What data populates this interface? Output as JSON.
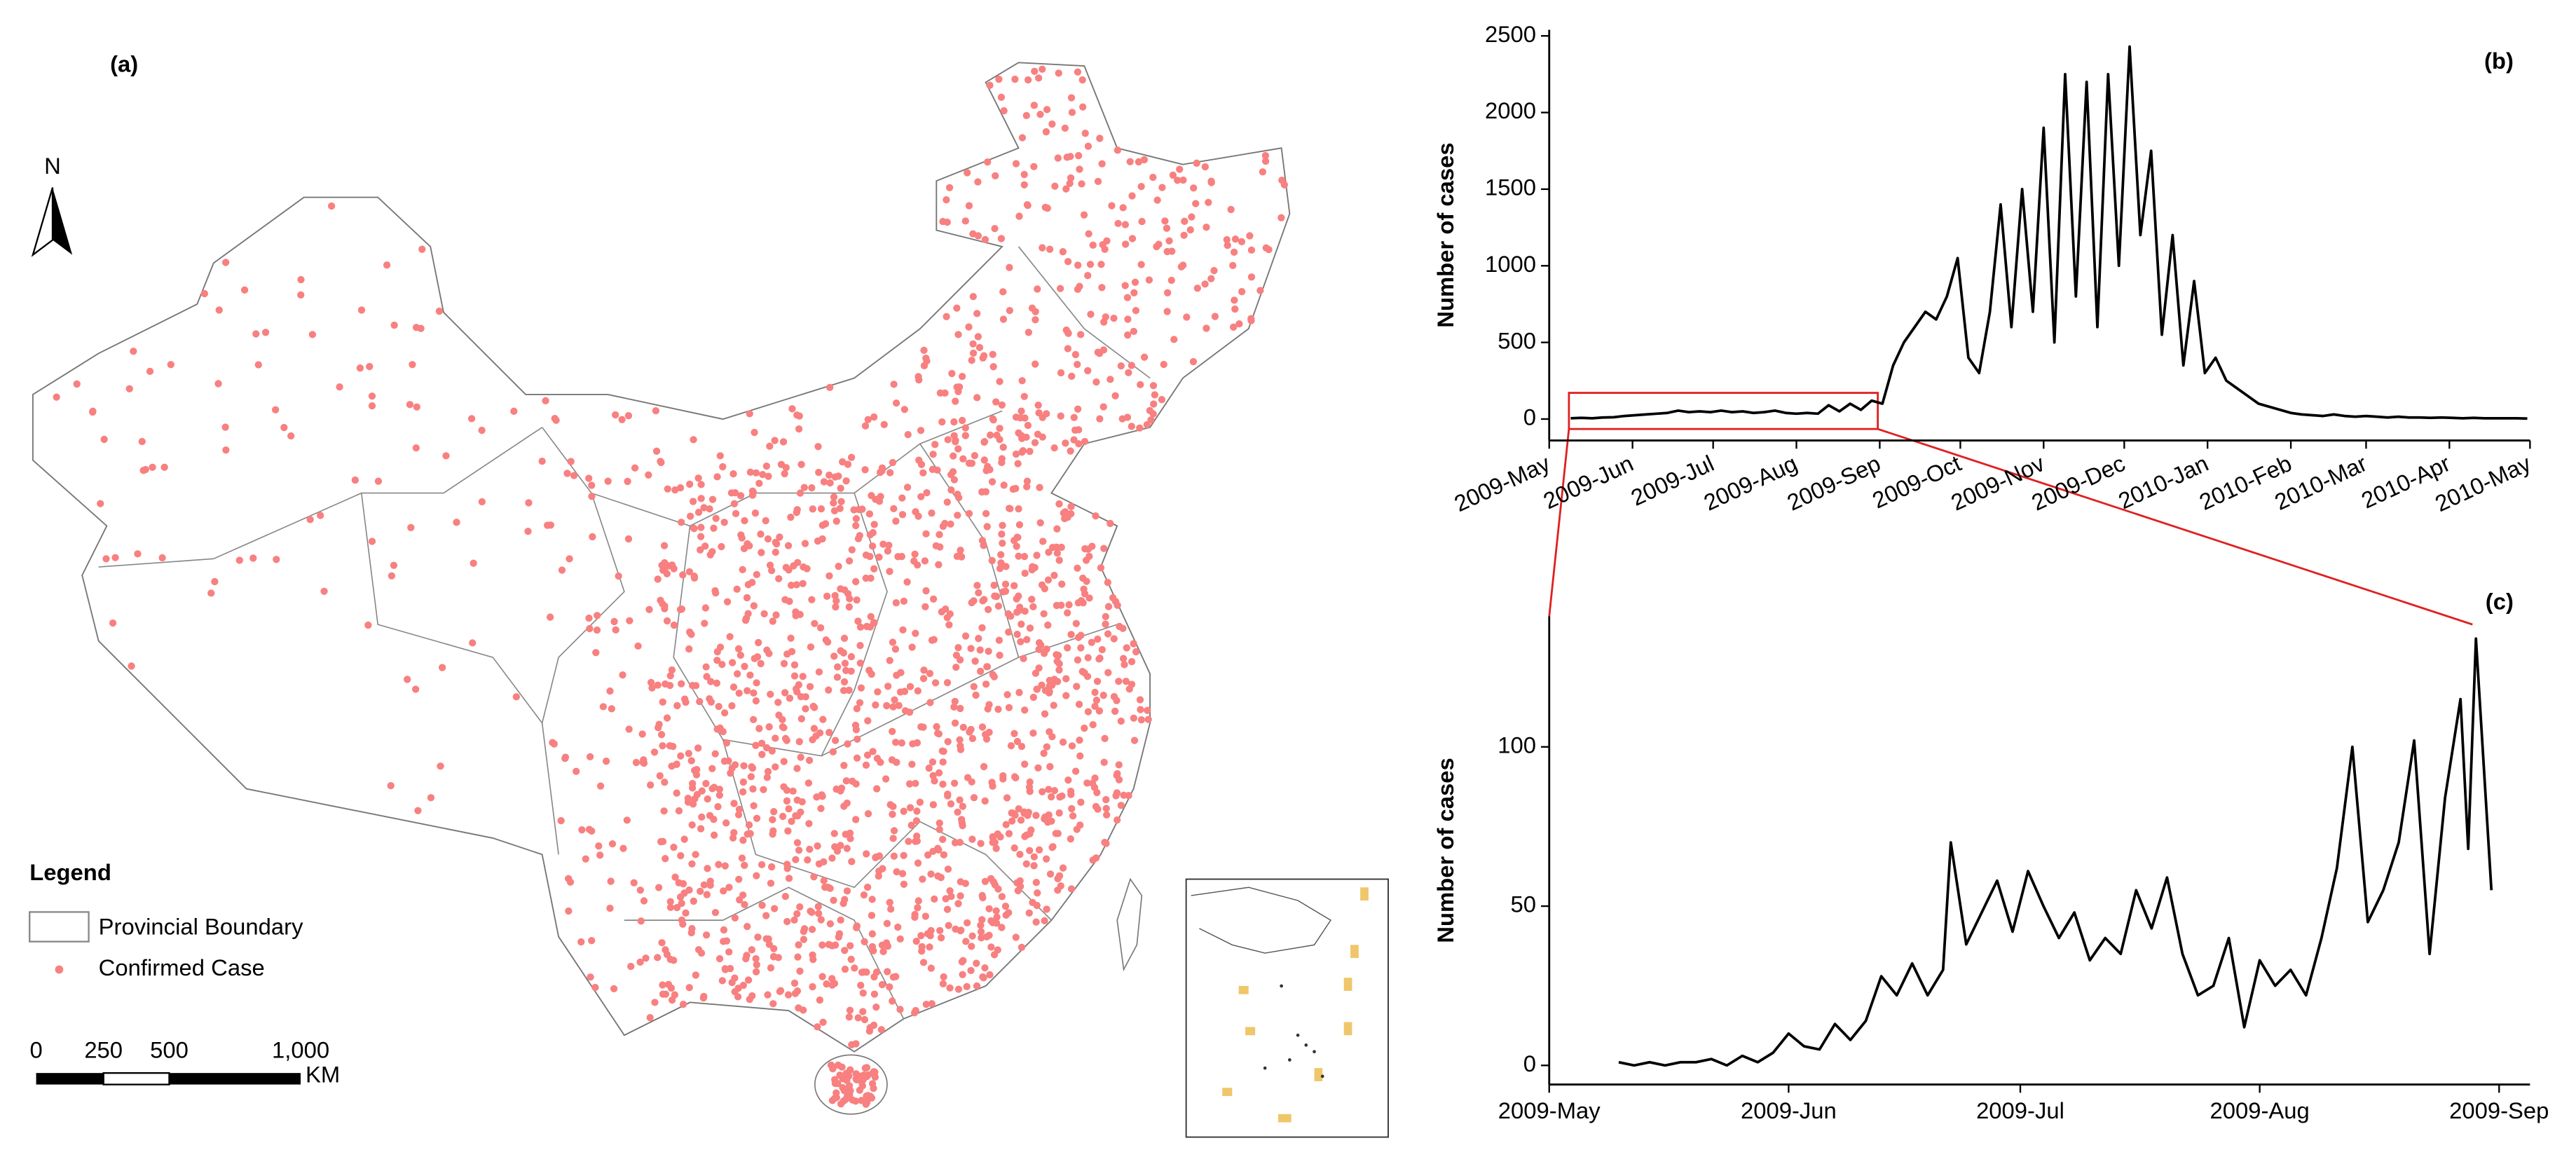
{
  "map": {
    "panel_label": "(a)",
    "north": "N",
    "legend": {
      "title": "Legend",
      "items": [
        "Provincial Boundary",
        "Confirmed Case"
      ]
    },
    "scale_bar": {
      "labels": [
        "0",
        "250",
        "500",
        "1,000"
      ],
      "unit": "KM"
    }
  },
  "chart_data": [
    {
      "type": "line",
      "panel_label": "(b)",
      "y_label": "Number of cases",
      "color": "#000000",
      "x": [
        8,
        12,
        16,
        20,
        24,
        28,
        32,
        36,
        40,
        44,
        48,
        52,
        56,
        60,
        64,
        68,
        72,
        76,
        80,
        84,
        88,
        92,
        96,
        100,
        104,
        108,
        112,
        116,
        120,
        124,
        128,
        132,
        136,
        140,
        144,
        148,
        152,
        156,
        160,
        164,
        168,
        172,
        176,
        180,
        184,
        188,
        192,
        196,
        200,
        204,
        208,
        212,
        216,
        220,
        224,
        228,
        232,
        236,
        240,
        244,
        248,
        252,
        256,
        260,
        264,
        268,
        272,
        276,
        280,
        284,
        288,
        292,
        296,
        300,
        304,
        308,
        312,
        316,
        320,
        324,
        328,
        332,
        336,
        340,
        344,
        348,
        352,
        356,
        360,
        364
      ],
      "values": [
        5,
        8,
        5,
        10,
        12,
        20,
        25,
        30,
        35,
        40,
        55,
        45,
        50,
        45,
        55,
        45,
        50,
        40,
        45,
        55,
        40,
        35,
        40,
        35,
        90,
        50,
        100,
        60,
        120,
        100,
        350,
        500,
        600,
        700,
        650,
        800,
        1050,
        400,
        300,
        700,
        1400,
        600,
        1500,
        700,
        1900,
        500,
        2250,
        800,
        2200,
        600,
        2250,
        1000,
        2430,
        1200,
        1750,
        550,
        1200,
        350,
        900,
        300,
        400,
        250,
        200,
        150,
        100,
        80,
        60,
        40,
        30,
        25,
        20,
        30,
        20,
        15,
        20,
        15,
        10,
        15,
        10,
        10,
        8,
        10,
        8,
        5,
        8,
        5,
        5,
        5,
        5,
        3
      ],
      "xlim": [
        0,
        365
      ],
      "xticks": [
        {
          "value": 0,
          "label": "2009-May"
        },
        {
          "value": 31,
          "label": "2009-Jun"
        },
        {
          "value": 61,
          "label": "2009-Jul"
        },
        {
          "value": 92,
          "label": "2009-Aug"
        },
        {
          "value": 123,
          "label": "2009-Sep"
        },
        {
          "value": 153,
          "label": "2009-Oct"
        },
        {
          "value": 184,
          "label": "2009-Nov"
        },
        {
          "value": 214,
          "label": "2009-Dec"
        },
        {
          "value": 245,
          "label": "2010-Jan"
        },
        {
          "value": 276,
          "label": "2010-Feb"
        },
        {
          "value": 304,
          "label": "2010-Mar"
        },
        {
          "value": 335,
          "label": "2010-Apr"
        },
        {
          "value": 365,
          "label": "2010-May"
        }
      ],
      "ylim": [
        -140,
        2540
      ],
      "yticks": [
        0,
        500,
        1000,
        1500,
        2000,
        2500
      ]
    },
    {
      "type": "line",
      "panel_label": "(c)",
      "y_label": "Number of cases",
      "color": "#000000",
      "x": [
        9,
        11,
        13,
        15,
        17,
        19,
        21,
        23,
        25,
        27,
        29,
        31,
        33,
        35,
        37,
        39,
        41,
        43,
        45,
        47,
        49,
        51,
        52,
        54,
        56,
        58,
        60,
        62,
        64,
        66,
        68,
        70,
        72,
        74,
        76,
        78,
        80,
        82,
        84,
        86,
        88,
        90,
        92,
        94,
        96,
        98,
        100,
        102,
        104,
        106,
        108,
        110,
        112,
        114,
        116,
        118,
        119,
        120,
        122
      ],
      "values": [
        1,
        0,
        1,
        0,
        1,
        1,
        2,
        0,
        3,
        1,
        4,
        10,
        6,
        5,
        13,
        8,
        14,
        28,
        22,
        32,
        22,
        30,
        70,
        38,
        48,
        58,
        42,
        61,
        50,
        40,
        48,
        33,
        40,
        35,
        55,
        43,
        59,
        35,
        22,
        25,
        40,
        12,
        33,
        25,
        30,
        22,
        40,
        62,
        100,
        45,
        55,
        70,
        102,
        35,
        84,
        115,
        68,
        134,
        55
      ],
      "xlim": [
        0,
        127
      ],
      "xticks": [
        {
          "value": 0,
          "label": "2009-May"
        },
        {
          "value": 31,
          "label": "2009-Jun"
        },
        {
          "value": 61,
          "label": "2009-Jul"
        },
        {
          "value": 92,
          "label": "2009-Aug"
        },
        {
          "value": 123,
          "label": "2009-Sep"
        }
      ],
      "ylim": [
        -6,
        141
      ],
      "yticks": [
        0,
        50,
        100
      ]
    }
  ]
}
